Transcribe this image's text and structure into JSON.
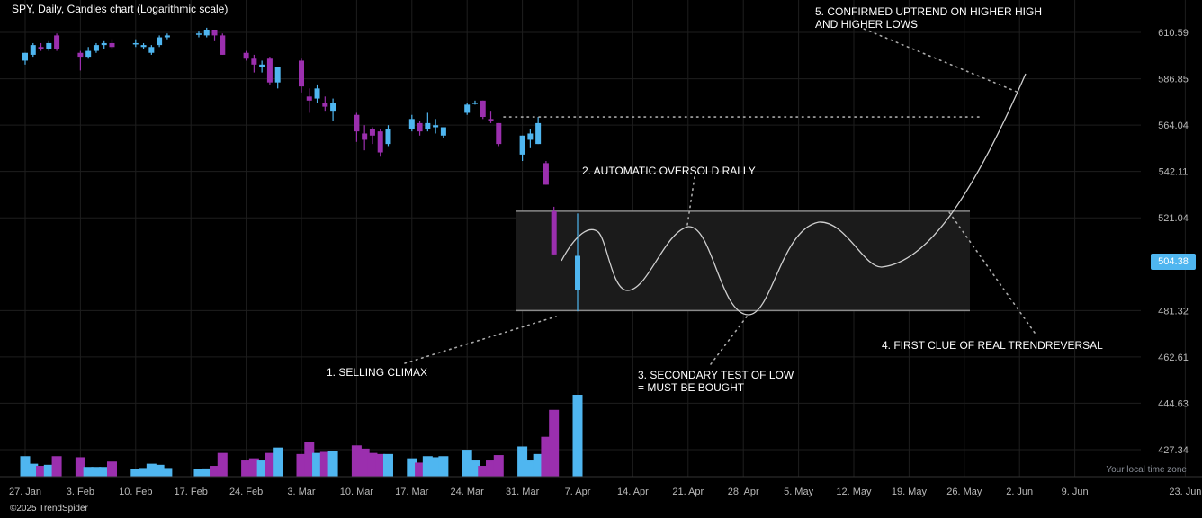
{
  "header": {
    "title": "SPY, Daily, Candles chart (Logarithmic scale)",
    "timezone_label": "Your local time zone",
    "copyright": "©2025 TrendSpider"
  },
  "colors": {
    "background": "#000000",
    "up": "#4fb6f0",
    "down": "#9b2fae",
    "grid": "#1e1e1e",
    "zone_fill": "#1b1b1b",
    "zone_line": "#8a8a8a",
    "annotation": "#aaaaaa",
    "axis_text": "#b9b9b9"
  },
  "current_price": "504.38",
  "annotations": [
    {
      "id": "selling-climax",
      "lines": [
        "1. SELLING CLIMAX"
      ]
    },
    {
      "id": "automatic-rally",
      "lines": [
        "2. AUTOMATIC OVERSOLD RALLY"
      ]
    },
    {
      "id": "secondary-test",
      "lines": [
        "3. SECONDARY TEST OF LOW",
        "= MUST BE BOUGHT"
      ]
    },
    {
      "id": "first-clue",
      "lines": [
        "4. FIRST CLUE OF REAL TRENDREVERSAL"
      ]
    },
    {
      "id": "confirmed-uptrend",
      "lines": [
        "5. CONFIRMED UPTREND ON HIGHER HIGH",
        "AND HIGHER LOWS"
      ]
    }
  ],
  "chart_data": {
    "type": "candlestick",
    "title": "SPY, Daily, Candles chart (Logarithmic scale)",
    "scale": "logarithmic",
    "y_ticks": [
      "610.59",
      "586.85",
      "564.04",
      "542.11",
      "521.04",
      "504.38",
      "481.32",
      "462.61",
      "444.63",
      "427.34"
    ],
    "ylim": [
      417,
      625
    ],
    "x_ticks": [
      "27. Jan",
      "3. Feb",
      "10. Feb",
      "17. Feb",
      "24. Feb",
      "3. Mar",
      "10. Mar",
      "17. Mar",
      "24. Mar",
      "31. Mar",
      "7. Apr",
      "14. Apr",
      "21. Apr",
      "28. Apr",
      "5. May",
      "12. May",
      "19. May",
      "26. May",
      "2. Jun",
      "9. Jun",
      "23. Jun"
    ],
    "grid": true,
    "candles": [
      {
        "date": "2025-01-27",
        "open": 596,
        "high": 600,
        "low": 594,
        "close": 600
      },
      {
        "date": "2025-01-28",
        "open": 599,
        "high": 605,
        "low": 598,
        "close": 604
      },
      {
        "date": "2025-01-29",
        "open": 603,
        "high": 605,
        "low": 601,
        "close": 602
      },
      {
        "date": "2025-01-30",
        "open": 602,
        "high": 606,
        "low": 601,
        "close": 605
      },
      {
        "date": "2025-01-31",
        "open": 609,
        "high": 610,
        "low": 601,
        "close": 602
      },
      {
        "date": "2025-02-03",
        "open": 600,
        "high": 601,
        "low": 591,
        "close": 598
      },
      {
        "date": "2025-02-04",
        "open": 598,
        "high": 603,
        "low": 597,
        "close": 601
      },
      {
        "date": "2025-02-05",
        "open": 601,
        "high": 605,
        "low": 600,
        "close": 604
      },
      {
        "date": "2025-02-06",
        "open": 604,
        "high": 606,
        "low": 602,
        "close": 605
      },
      {
        "date": "2025-02-07",
        "open": 605,
        "high": 607,
        "low": 602,
        "close": 603
      },
      {
        "date": "2025-02-10",
        "open": 605,
        "high": 607,
        "low": 603,
        "close": 605
      },
      {
        "date": "2025-02-11",
        "open": 603,
        "high": 605,
        "low": 602,
        "close": 604
      },
      {
        "date": "2025-02-12",
        "open": 600,
        "high": 604,
        "low": 599,
        "close": 603
      },
      {
        "date": "2025-02-13",
        "open": 604,
        "high": 609,
        "low": 603,
        "close": 608
      },
      {
        "date": "2025-02-14",
        "open": 608,
        "high": 610,
        "low": 607,
        "close": 609
      },
      {
        "date": "2025-02-18",
        "open": 610,
        "high": 611,
        "low": 608,
        "close": 610
      },
      {
        "date": "2025-02-19",
        "open": 609,
        "high": 613,
        "low": 608,
        "close": 612
      },
      {
        "date": "2025-02-20",
        "open": 612,
        "high": 612,
        "low": 606,
        "close": 609
      },
      {
        "date": "2025-02-21",
        "open": 609,
        "high": 610,
        "low": 599,
        "close": 599
      },
      {
        "date": "2025-02-24",
        "open": 600,
        "high": 601,
        "low": 596,
        "close": 597
      },
      {
        "date": "2025-02-25",
        "open": 597,
        "high": 599,
        "low": 590,
        "close": 594
      },
      {
        "date": "2025-02-26",
        "open": 593,
        "high": 596,
        "low": 590,
        "close": 594
      },
      {
        "date": "2025-02-27",
        "open": 597,
        "high": 598,
        "low": 584,
        "close": 585
      },
      {
        "date": "2025-02-28",
        "open": 585,
        "high": 593,
        "low": 582,
        "close": 593
      },
      {
        "date": "2025-03-03",
        "open": 596,
        "high": 597,
        "low": 580,
        "close": 583
      },
      {
        "date": "2025-03-04",
        "open": 578,
        "high": 582,
        "low": 570,
        "close": 576
      },
      {
        "date": "2025-03-05",
        "open": 577,
        "high": 584,
        "low": 575,
        "close": 582
      },
      {
        "date": "2025-03-06",
        "open": 575,
        "high": 578,
        "low": 571,
        "close": 573
      },
      {
        "date": "2025-03-07",
        "open": 571,
        "high": 577,
        "low": 566,
        "close": 575
      },
      {
        "date": "2025-03-10",
        "open": 569,
        "high": 570,
        "low": 556,
        "close": 561
      },
      {
        "date": "2025-03-11",
        "open": 560,
        "high": 564,
        "low": 552,
        "close": 557
      },
      {
        "date": "2025-03-12",
        "open": 562,
        "high": 563,
        "low": 555,
        "close": 559
      },
      {
        "date": "2025-03-13",
        "open": 561,
        "high": 562,
        "low": 549,
        "close": 551
      },
      {
        "date": "2025-03-14",
        "open": 555,
        "high": 564,
        "low": 554,
        "close": 562
      },
      {
        "date": "2025-03-17",
        "open": 562,
        "high": 569,
        "low": 561,
        "close": 567
      },
      {
        "date": "2025-03-18",
        "open": 565,
        "high": 566,
        "low": 559,
        "close": 561
      },
      {
        "date": "2025-03-19",
        "open": 562,
        "high": 570,
        "low": 561,
        "close": 565
      },
      {
        "date": "2025-03-20",
        "open": 563,
        "high": 567,
        "low": 560,
        "close": 564
      },
      {
        "date": "2025-03-21",
        "open": 559,
        "high": 563,
        "low": 558,
        "close": 563
      },
      {
        "date": "2025-03-24",
        "open": 570,
        "high": 575,
        "low": 569,
        "close": 574
      },
      {
        "date": "2025-03-25",
        "open": 575,
        "high": 576,
        "low": 574,
        "close": 575
      },
      {
        "date": "2025-03-26",
        "open": 576,
        "high": 576,
        "low": 567,
        "close": 568
      },
      {
        "date": "2025-03-27",
        "open": 567,
        "high": 571,
        "low": 565,
        "close": 566
      },
      {
        "date": "2025-03-28",
        "open": 565,
        "high": 565,
        "low": 554,
        "close": 555
      },
      {
        "date": "2025-03-31",
        "open": 550,
        "high": 559,
        "low": 547,
        "close": 559
      },
      {
        "date": "2025-04-01",
        "open": 557,
        "high": 562,
        "low": 553,
        "close": 560
      },
      {
        "date": "2025-04-02",
        "open": 555,
        "high": 568,
        "low": 555,
        "close": 565
      },
      {
        "date": "2025-04-03",
        "open": 546,
        "high": 547,
        "low": 536,
        "close": 536
      },
      {
        "date": "2025-04-04",
        "open": 524,
        "high": 526,
        "low": 505,
        "close": 505
      },
      {
        "date": "2025-04-07",
        "open": 490,
        "high": 523,
        "low": 481,
        "close": 504.38
      }
    ],
    "volume": [
      {
        "date": "2025-01-27",
        "value": 95
      },
      {
        "date": "2025-01-28",
        "value": 60
      },
      {
        "date": "2025-01-29",
        "value": 50
      },
      {
        "date": "2025-01-30",
        "value": 55
      },
      {
        "date": "2025-01-31",
        "value": 95
      },
      {
        "date": "2025-02-03",
        "value": 90
      },
      {
        "date": "2025-02-04",
        "value": 45
      },
      {
        "date": "2025-02-05",
        "value": 45
      },
      {
        "date": "2025-02-06",
        "value": 45
      },
      {
        "date": "2025-02-07",
        "value": 70
      },
      {
        "date": "2025-02-10",
        "value": 35
      },
      {
        "date": "2025-02-11",
        "value": 40
      },
      {
        "date": "2025-02-12",
        "value": 60
      },
      {
        "date": "2025-02-13",
        "value": 55
      },
      {
        "date": "2025-02-14",
        "value": 40
      },
      {
        "date": "2025-02-18",
        "value": 35
      },
      {
        "date": "2025-02-19",
        "value": 38
      },
      {
        "date": "2025-02-20",
        "value": 50
      },
      {
        "date": "2025-02-21",
        "value": 110
      },
      {
        "date": "2025-02-24",
        "value": 75
      },
      {
        "date": "2025-02-25",
        "value": 85
      },
      {
        "date": "2025-02-26",
        "value": 75
      },
      {
        "date": "2025-02-27",
        "value": 110
      },
      {
        "date": "2025-02-28",
        "value": 135
      },
      {
        "date": "2025-03-03",
        "value": 105
      },
      {
        "date": "2025-03-04",
        "value": 160
      },
      {
        "date": "2025-03-05",
        "value": 110
      },
      {
        "date": "2025-03-06",
        "value": 115
      },
      {
        "date": "2025-03-07",
        "value": 120
      },
      {
        "date": "2025-03-10",
        "value": 145
      },
      {
        "date": "2025-03-11",
        "value": 130
      },
      {
        "date": "2025-03-12",
        "value": 110
      },
      {
        "date": "2025-03-13",
        "value": 105
      },
      {
        "date": "2025-03-14",
        "value": 105
      },
      {
        "date": "2025-03-17",
        "value": 85
      },
      {
        "date": "2025-03-18",
        "value": 65
      },
      {
        "date": "2025-03-19",
        "value": 95
      },
      {
        "date": "2025-03-20",
        "value": 90
      },
      {
        "date": "2025-03-21",
        "value": 95
      },
      {
        "date": "2025-03-24",
        "value": 125
      },
      {
        "date": "2025-03-25",
        "value": 75
      },
      {
        "date": "2025-03-26",
        "value": 50
      },
      {
        "date": "2025-03-27",
        "value": 75
      },
      {
        "date": "2025-03-28",
        "value": 100
      },
      {
        "date": "2025-03-31",
        "value": 140
      },
      {
        "date": "2025-04-01",
        "value": 75
      },
      {
        "date": "2025-04-02",
        "value": 105
      },
      {
        "date": "2025-04-03",
        "value": 185
      },
      {
        "date": "2025-04-04",
        "value": 310
      },
      {
        "date": "2025-04-07",
        "value": 380
      }
    ],
    "range_box": {
      "low": 481.32,
      "high": 524
    },
    "resistance_level": 568
  }
}
